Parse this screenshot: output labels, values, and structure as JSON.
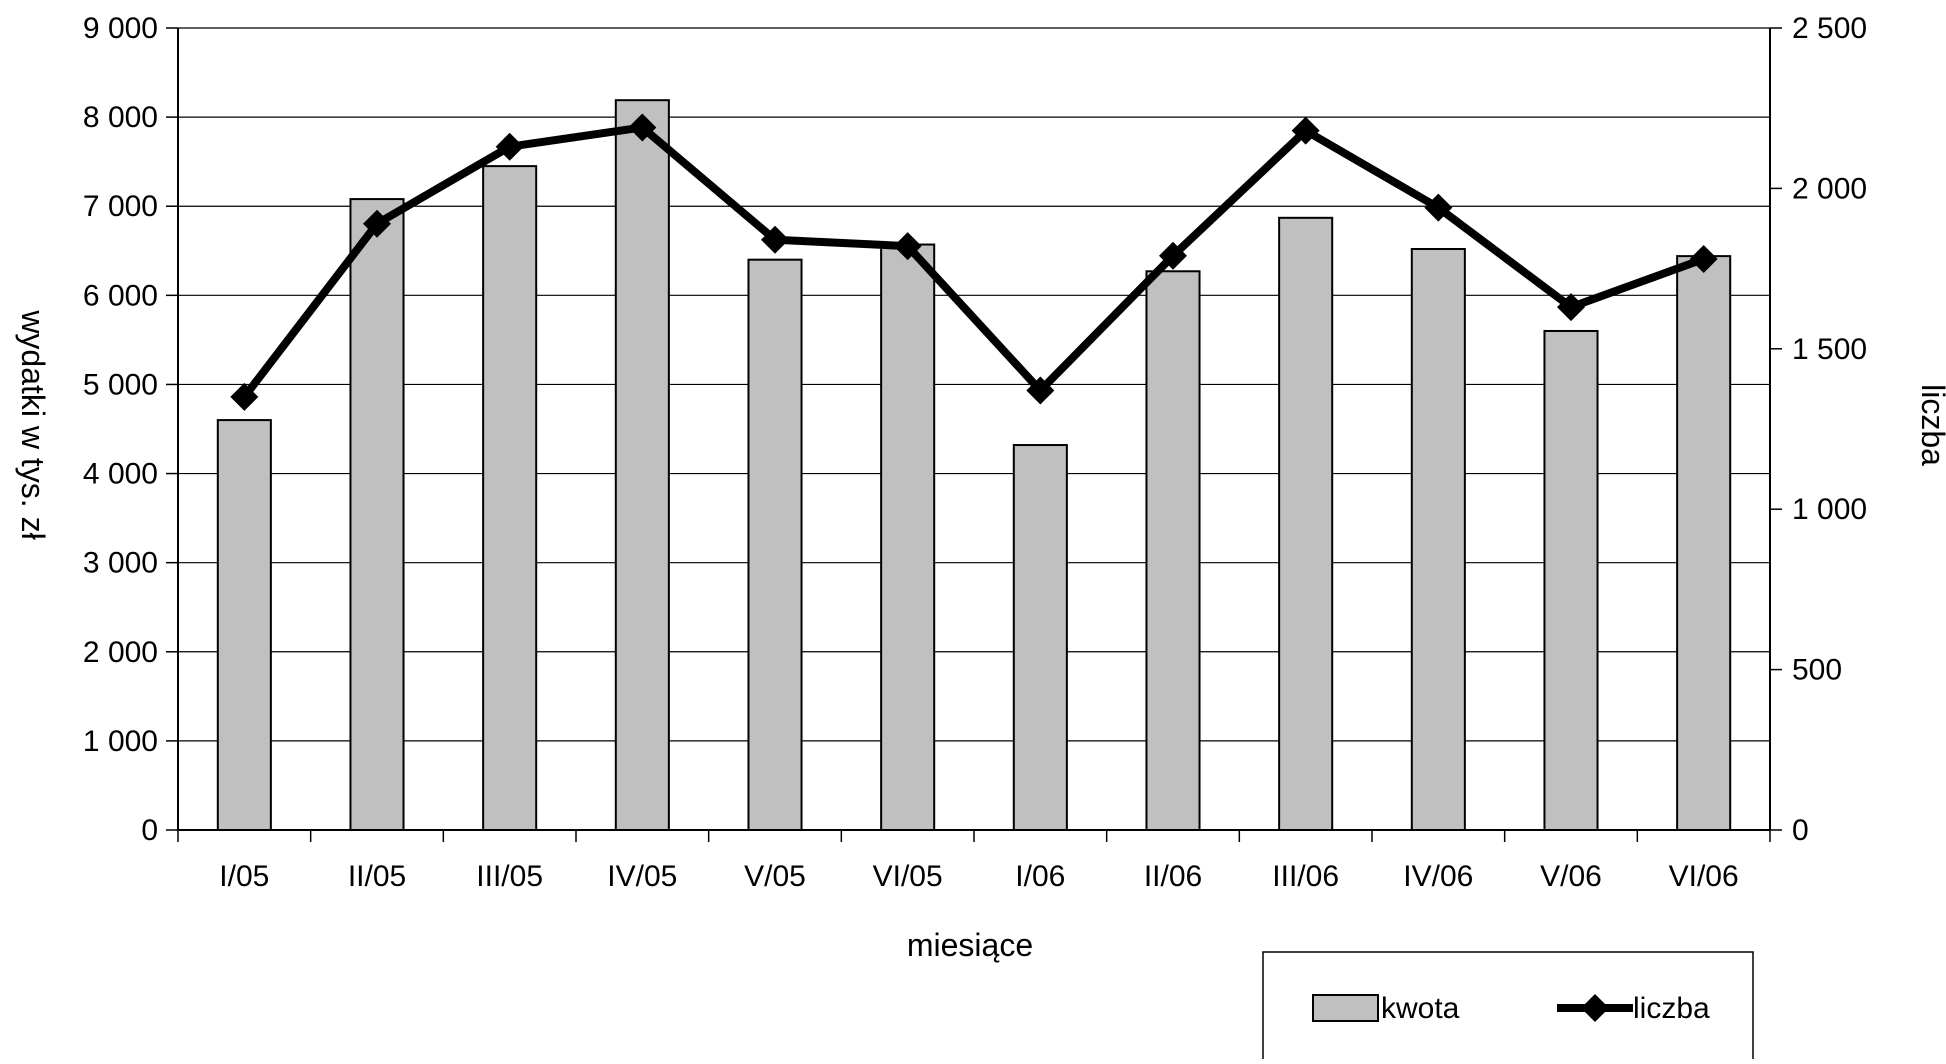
{
  "chart_data": {
    "type": "bar",
    "title": "",
    "xlabel": "miesiące",
    "ylabel": "wydatki w tys. zł",
    "y2label": "liczba",
    "categories": [
      "I/05",
      "II/05",
      "III/05",
      "IV/05",
      "V/05",
      "VI/05",
      "I/06",
      "II/06",
      "III/06",
      "IV/06",
      "V/06",
      "VI/06"
    ],
    "ylim": [
      0,
      9000
    ],
    "y2lim": [
      0,
      2500
    ],
    "yticks": [
      "0",
      "1 000",
      "2 000",
      "3 000",
      "4 000",
      "5 000",
      "6 000",
      "7 000",
      "8 000",
      "9 000"
    ],
    "y2ticks": [
      "0",
      "500",
      "1 000",
      "1 500",
      "2 000",
      "2 500"
    ],
    "yticks_values": [
      0,
      1000,
      2000,
      3000,
      4000,
      5000,
      6000,
      7000,
      8000,
      9000
    ],
    "y2ticks_values": [
      0,
      500,
      1000,
      1500,
      2000,
      2500
    ],
    "grid": true,
    "legend_position": "bottom-right",
    "series": [
      {
        "name": "kwota",
        "type": "bar",
        "axis": "left",
        "color": "#c0c0c0",
        "values": [
          4600,
          7080,
          7450,
          8190,
          6400,
          6570,
          4320,
          6270,
          6870,
          6520,
          5600,
          6440
        ]
      },
      {
        "name": "liczba",
        "type": "line",
        "axis": "right",
        "color": "#000000",
        "marker": "diamond",
        "values": [
          1350,
          1890,
          2130,
          2190,
          1840,
          1820,
          1370,
          1790,
          2180,
          1940,
          1630,
          1780
        ]
      }
    ]
  }
}
